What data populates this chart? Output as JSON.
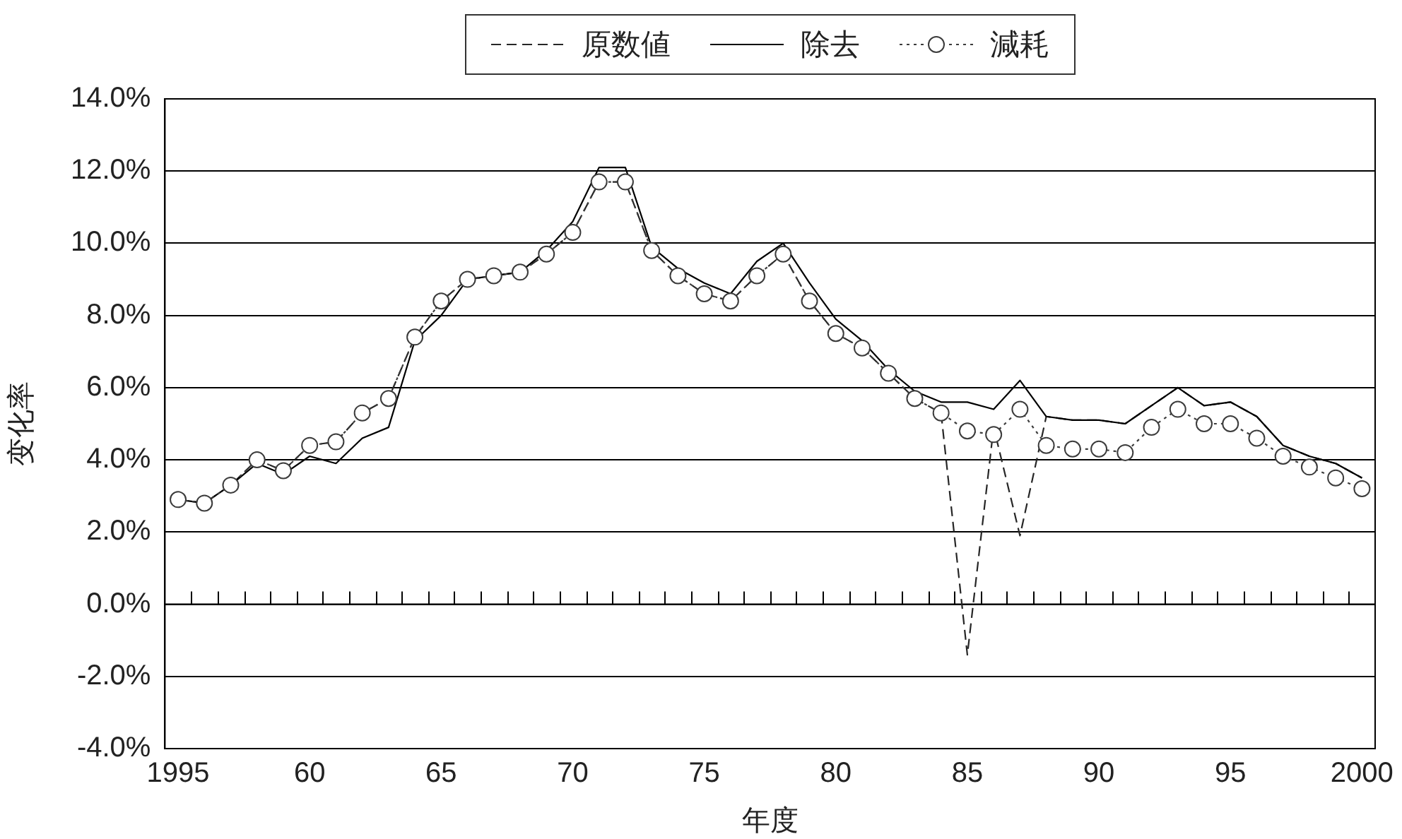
{
  "chart_data": {
    "type": "line",
    "xlabel": "年度",
    "ylabel": "变化率",
    "categories": [
      "1995",
      null,
      null,
      null,
      null,
      "60",
      null,
      null,
      null,
      null,
      "65",
      null,
      null,
      null,
      null,
      "70",
      null,
      null,
      null,
      null,
      "75",
      null,
      null,
      null,
      null,
      "80",
      null,
      null,
      null,
      null,
      "85",
      null,
      null,
      null,
      null,
      "90",
      null,
      null,
      null,
      null,
      "95",
      null,
      null,
      null,
      null,
      "2000"
    ],
    "series": [
      {
        "name": "原数値",
        "color": "#262626",
        "line_style": "dashed",
        "values": [
          2.9,
          2.8,
          3.3,
          4.0,
          3.7,
          4.4,
          4.5,
          5.3,
          5.7,
          7.4,
          8.4,
          9.0,
          9.1,
          9.2,
          9.7,
          10.3,
          11.7,
          11.7,
          9.8,
          9.1,
          8.6,
          8.4,
          9.1,
          9.7,
          8.4,
          7.5,
          7.1,
          6.4,
          5.7,
          5.3,
          -1.4,
          4.9,
          1.9,
          5.2,
          5.1,
          5.1,
          5.0,
          5.5,
          6.0,
          5.5,
          5.6,
          5.2,
          4.4,
          4.1,
          3.9,
          3.5
        ]
      },
      {
        "name": "除去",
        "color": "#000000",
        "line_style": "solid",
        "values": [
          2.9,
          2.8,
          3.3,
          3.9,
          3.6,
          4.1,
          3.9,
          4.6,
          4.9,
          7.3,
          8.0,
          9.0,
          9.1,
          9.2,
          9.8,
          10.6,
          12.1,
          12.1,
          9.9,
          9.3,
          8.9,
          8.6,
          9.5,
          10.0,
          8.9,
          7.9,
          7.3,
          6.5,
          5.9,
          5.6,
          5.6,
          5.4,
          6.2,
          5.2,
          5.1,
          5.1,
          5.0,
          5.5,
          6.0,
          5.5,
          5.6,
          5.2,
          4.4,
          4.1,
          3.9,
          3.5
        ]
      },
      {
        "name": "減耗",
        "color": "#3c3c3c",
        "line_style": "dotted",
        "marker": "circle",
        "values": [
          2.9,
          2.8,
          3.3,
          4.0,
          3.7,
          4.4,
          4.5,
          5.3,
          5.7,
          7.4,
          8.4,
          9.0,
          9.1,
          9.2,
          9.7,
          10.3,
          11.7,
          11.7,
          9.8,
          9.1,
          8.6,
          8.4,
          9.1,
          9.7,
          8.4,
          7.5,
          7.1,
          6.4,
          5.7,
          5.3,
          4.8,
          4.7,
          5.4,
          4.4,
          4.3,
          4.3,
          4.2,
          4.9,
          5.4,
          5.0,
          5.0,
          4.6,
          4.1,
          3.8,
          3.5,
          3.2
        ]
      }
    ],
    "ylim": [
      -4,
      14
    ],
    "yticks": [
      {
        "value": -4,
        "label": "-4.0%"
      },
      {
        "value": -2,
        "label": "-2.0%"
      },
      {
        "value": 0,
        "label": "0.0%"
      },
      {
        "value": 2,
        "label": "2.0%"
      },
      {
        "value": 4,
        "label": "4.0%"
      },
      {
        "value": 6,
        "label": "6.0%"
      },
      {
        "value": 8,
        "label": "8.0%"
      },
      {
        "value": 10,
        "label": "10.0%"
      },
      {
        "value": 12,
        "label": "12.0%"
      },
      {
        "value": 14,
        "label": "14.0%"
      }
    ],
    "grid": "y",
    "legend": "top"
  }
}
